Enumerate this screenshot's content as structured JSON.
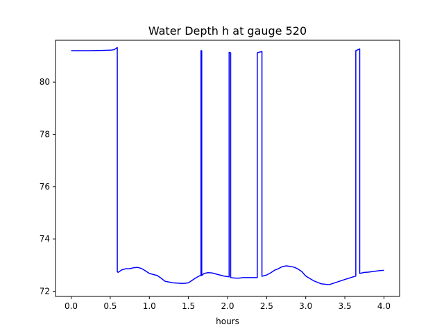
{
  "chart_data": {
    "type": "line",
    "title": "Water Depth h at gauge 520",
    "xlabel": "hours",
    "ylabel": "",
    "xlim": [
      -0.2,
      4.2
    ],
    "ylim": [
      71.8,
      81.6
    ],
    "xticks": [
      0.0,
      0.5,
      1.0,
      1.5,
      2.0,
      2.5,
      3.0,
      3.5,
      4.0
    ],
    "xtick_labels": [
      "0.0",
      "0.5",
      "1.0",
      "1.5",
      "2.0",
      "2.5",
      "3.0",
      "3.5",
      "4.0"
    ],
    "yticks": [
      72,
      74,
      76,
      78,
      80
    ],
    "ytick_labels": [
      "72",
      "74",
      "76",
      "78",
      "80"
    ],
    "grid": false,
    "legend": null,
    "series": [
      {
        "color": "#0000ff",
        "x": [
          0.0,
          0.2,
          0.4,
          0.5,
          0.55,
          0.59,
          0.59,
          0.6,
          0.65,
          0.7,
          0.75,
          0.8,
          0.85,
          0.9,
          0.95,
          1.0,
          1.05,
          1.1,
          1.15,
          1.2,
          1.25,
          1.3,
          1.35,
          1.4,
          1.45,
          1.5,
          1.55,
          1.6,
          1.65,
          1.66,
          1.66,
          1.67,
          1.67,
          1.7,
          1.75,
          1.8,
          1.85,
          1.9,
          1.95,
          2.02,
          2.02,
          2.04,
          2.04,
          2.1,
          2.15,
          2.2,
          2.3,
          2.38,
          2.38,
          2.44,
          2.44,
          2.5,
          2.55,
          2.6,
          2.65,
          2.7,
          2.75,
          2.8,
          2.85,
          2.9,
          2.95,
          3.0,
          3.1,
          3.2,
          3.3,
          3.4,
          3.5,
          3.64,
          3.64,
          3.69,
          3.69,
          3.75,
          3.8,
          3.85,
          3.9,
          3.95,
          4.0
        ],
        "y": [
          81.2,
          81.2,
          81.21,
          81.22,
          81.24,
          81.32,
          72.75,
          72.72,
          72.82,
          72.86,
          72.86,
          72.9,
          72.91,
          72.87,
          72.78,
          72.68,
          72.64,
          72.6,
          72.5,
          72.38,
          72.35,
          72.32,
          72.31,
          72.3,
          72.3,
          72.32,
          72.42,
          72.52,
          72.6,
          72.6,
          81.2,
          81.2,
          72.6,
          72.68,
          72.71,
          72.7,
          72.66,
          72.62,
          72.58,
          72.55,
          81.14,
          81.12,
          72.52,
          72.5,
          72.5,
          72.52,
          72.52,
          72.52,
          81.12,
          81.17,
          72.57,
          72.62,
          72.7,
          72.8,
          72.86,
          72.94,
          72.97,
          72.95,
          72.92,
          72.85,
          72.75,
          72.58,
          72.4,
          72.28,
          72.25,
          72.35,
          72.45,
          72.58,
          81.2,
          81.27,
          72.68,
          72.72,
          72.73,
          72.75,
          72.77,
          72.79,
          72.8
        ]
      }
    ]
  }
}
